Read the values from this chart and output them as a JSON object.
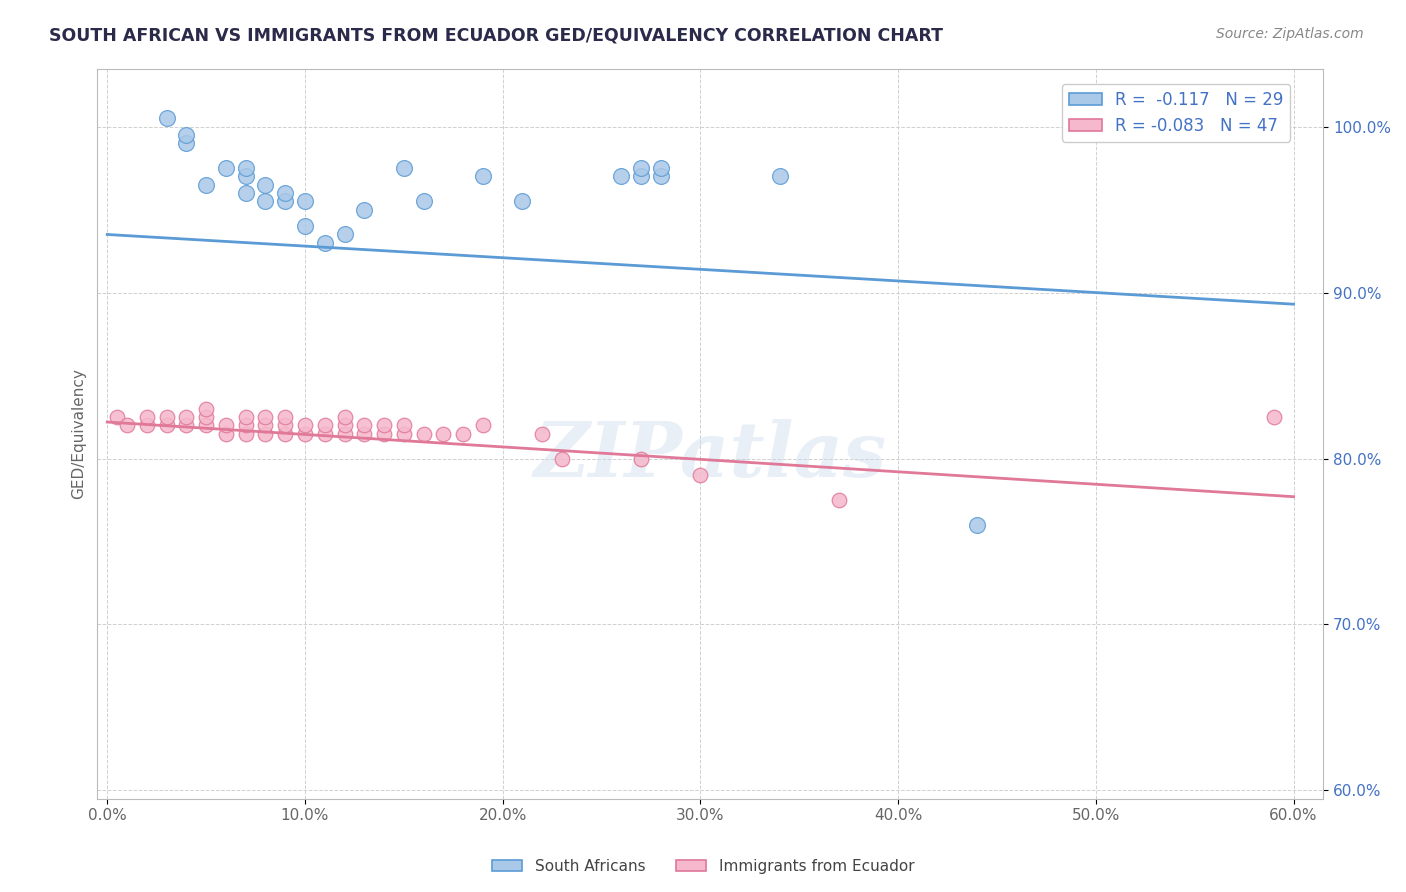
{
  "title": "SOUTH AFRICAN VS IMMIGRANTS FROM ECUADOR GED/EQUIVALENCY CORRELATION CHART",
  "source": "Source: ZipAtlas.com",
  "ylabel": "GED/Equivalency",
  "xlim": [
    -0.005,
    0.615
  ],
  "ylim": [
    0.595,
    1.035
  ],
  "xticklabels": [
    "0.0%",
    "10.0%",
    "20.0%",
    "30.0%",
    "40.0%",
    "50.0%",
    "60.0%"
  ],
  "yticklabels": [
    "60.0%",
    "70.0%",
    "80.0%",
    "90.0%",
    "100.0%"
  ],
  "ytick_values": [
    0.6,
    0.7,
    0.8,
    0.9,
    1.0
  ],
  "xtick_values": [
    0.0,
    0.1,
    0.2,
    0.3,
    0.4,
    0.5,
    0.6
  ],
  "blue_R": -0.117,
  "blue_N": 29,
  "pink_R": -0.083,
  "pink_N": 47,
  "blue_color": "#aac8e8",
  "pink_color": "#f5b8cc",
  "blue_line_color": "#5b9bd5",
  "pink_line_color": "#e07898",
  "watermark": "ZIPatlas",
  "blue_scatter_x": [
    0.03,
    0.04,
    0.04,
    0.05,
    0.06,
    0.07,
    0.07,
    0.07,
    0.08,
    0.08,
    0.09,
    0.09,
    0.1,
    0.1,
    0.11,
    0.12,
    0.13,
    0.15,
    0.16,
    0.19,
    0.21,
    0.26,
    0.27,
    0.27,
    0.28,
    0.28,
    0.34,
    0.44
  ],
  "blue_scatter_y": [
    1.005,
    0.99,
    0.995,
    0.965,
    0.975,
    0.96,
    0.97,
    0.975,
    0.955,
    0.965,
    0.955,
    0.96,
    0.94,
    0.955,
    0.93,
    0.935,
    0.95,
    0.975,
    0.955,
    0.97,
    0.955,
    0.97,
    0.97,
    0.975,
    0.97,
    0.975,
    0.97,
    0.76
  ],
  "pink_scatter_x": [
    0.005,
    0.01,
    0.02,
    0.02,
    0.03,
    0.03,
    0.04,
    0.04,
    0.05,
    0.05,
    0.05,
    0.06,
    0.06,
    0.07,
    0.07,
    0.07,
    0.08,
    0.08,
    0.08,
    0.09,
    0.09,
    0.09,
    0.1,
    0.1,
    0.11,
    0.11,
    0.12,
    0.12,
    0.12,
    0.13,
    0.13,
    0.14,
    0.14,
    0.15,
    0.15,
    0.16,
    0.17,
    0.18,
    0.19,
    0.22,
    0.23,
    0.27,
    0.3,
    0.37,
    0.59
  ],
  "pink_scatter_y": [
    0.825,
    0.82,
    0.82,
    0.825,
    0.82,
    0.825,
    0.82,
    0.825,
    0.82,
    0.825,
    0.83,
    0.815,
    0.82,
    0.815,
    0.82,
    0.825,
    0.815,
    0.82,
    0.825,
    0.815,
    0.82,
    0.825,
    0.815,
    0.82,
    0.815,
    0.82,
    0.815,
    0.82,
    0.825,
    0.815,
    0.82,
    0.815,
    0.82,
    0.815,
    0.82,
    0.815,
    0.815,
    0.815,
    0.82,
    0.815,
    0.8,
    0.8,
    0.79,
    0.775,
    0.825
  ],
  "blue_line_x": [
    0.0,
    0.6
  ],
  "blue_line_y": [
    0.935,
    0.893
  ],
  "pink_line_x": [
    0.0,
    0.6
  ],
  "pink_line_y": [
    0.822,
    0.777
  ],
  "blue_marker_size": 130,
  "pink_marker_size": 110,
  "title_color": "#2a2a4a",
  "axis_color": "#666666",
  "grid_color": "#d0d0d0",
  "tick_label_color": "#4472c4"
}
